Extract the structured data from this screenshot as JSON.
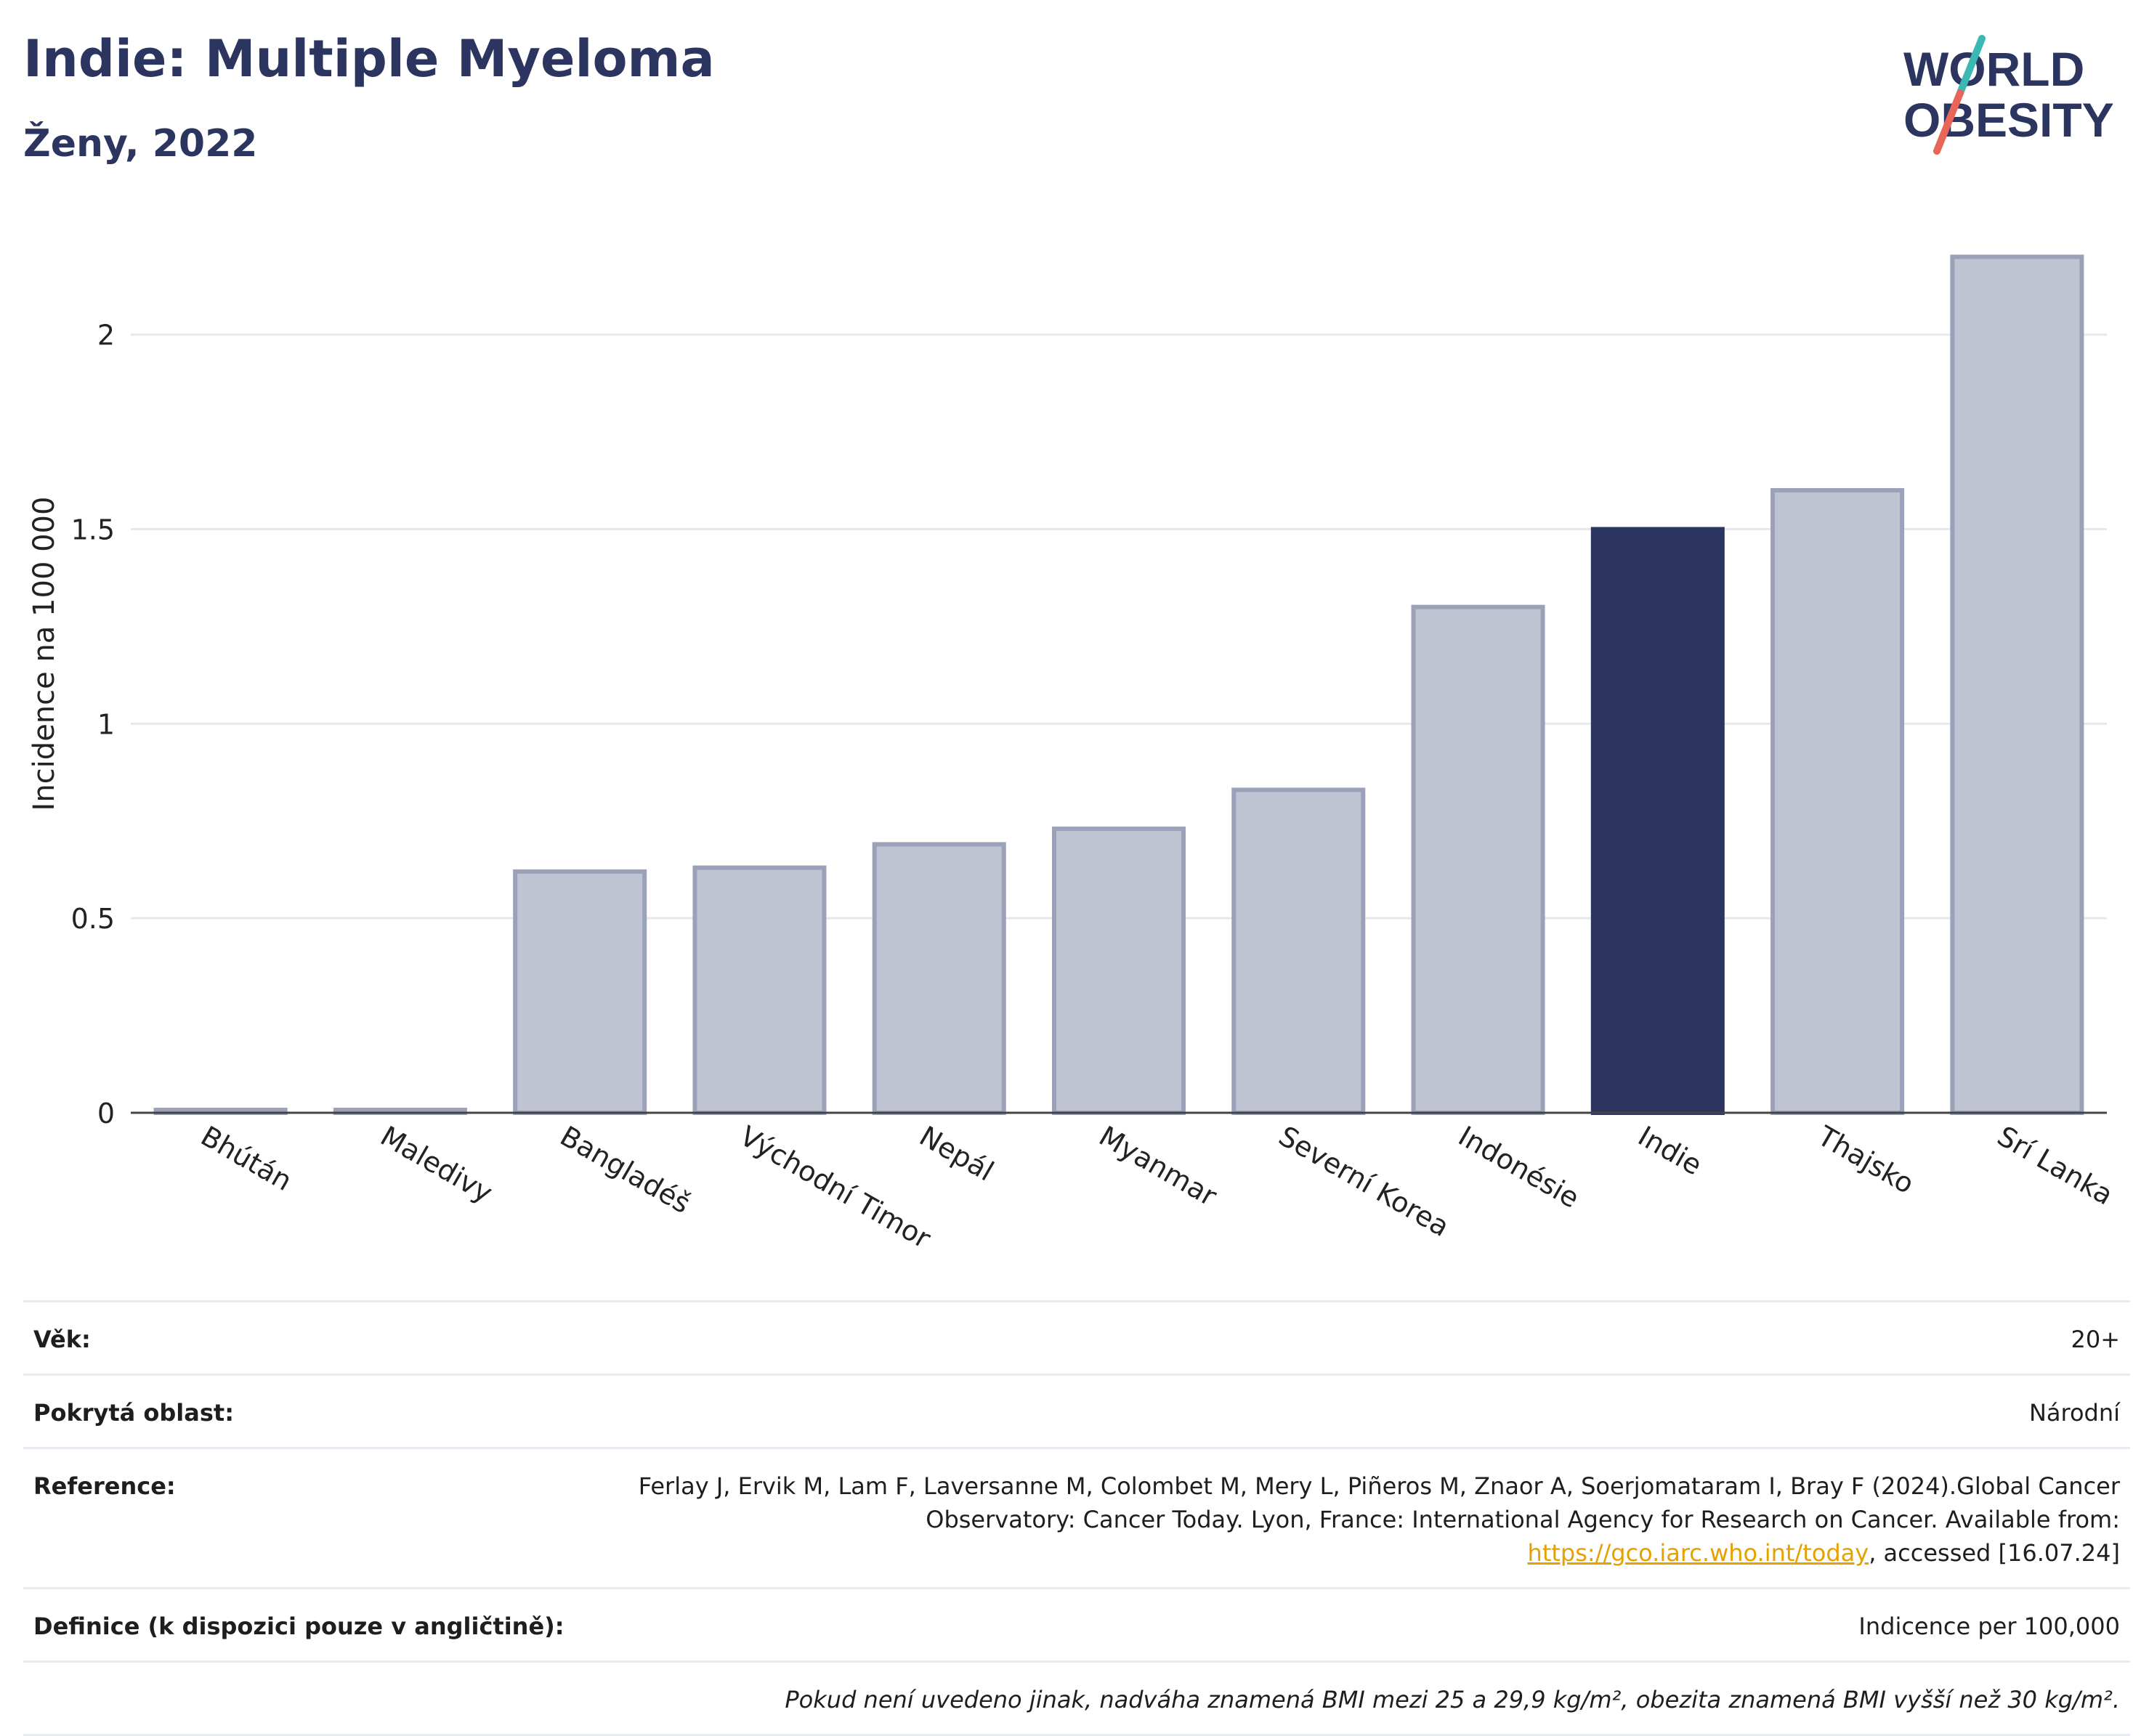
{
  "header": {
    "title": "Indie: Multiple Myeloma",
    "subtitle": "Ženy, 2022"
  },
  "logo": {
    "line1": "WORLD",
    "line2": "OBESITY"
  },
  "colors": {
    "highlight": "#2b3560",
    "bar": "#c0c4d2",
    "bar_border": "#9aa1b8",
    "grid": "#e6e8ef",
    "logo_text": "#2b3560",
    "logo_slash_top": "#3cb8b4",
    "logo_slash_bottom": "#e8655a"
  },
  "chart_data": {
    "type": "bar",
    "ylabel": "Incidence na 100 000",
    "ylim": [
      0,
      2.3
    ],
    "yticks": [
      0,
      0.5,
      1,
      1.5,
      2
    ],
    "ytick_labels": [
      "0",
      "0.5",
      "1",
      "1.5",
      "2"
    ],
    "grid": true,
    "categories": [
      "Bhútán",
      "Maledivy",
      "Bangladéš",
      "Východní Timor",
      "Nepál",
      "Myanmar",
      "Severní Korea",
      "Indonésie",
      "Indie",
      "Thajsko",
      "Srí Lanka"
    ],
    "values": [
      0,
      0,
      0.62,
      0.63,
      0.69,
      0.73,
      0.83,
      1.3,
      1.5,
      1.6,
      2.2
    ],
    "highlight": "Indie"
  },
  "meta": {
    "rows": [
      {
        "label": "Věk:",
        "value": "20+"
      },
      {
        "label": "Pokrytá oblast:",
        "value": "Národní"
      },
      {
        "label": "Reference:",
        "value_before": "Ferlay J, Ervik M, Lam F, Laversanne M, Colombet M, Mery L, Piñeros M, Znaor A, Soerjomataram I, Bray F (2024).Global Cancer Observatory: Cancer Today. Lyon, France: International Agency for Research on Cancer. Available from: ",
        "link": "https://gco.iarc.who.int/today",
        "value_after": ", accessed [16.07.24]"
      },
      {
        "label": "Definice (k dispozici pouze v angličtině):",
        "value": "Indicence per 100,000"
      }
    ],
    "note": "Pokud není uvedeno jinak, nadváha znamená BMI mezi 25 a 29,9 kg/m², obezita znamená BMI vyšší než 30 kg/m²."
  }
}
